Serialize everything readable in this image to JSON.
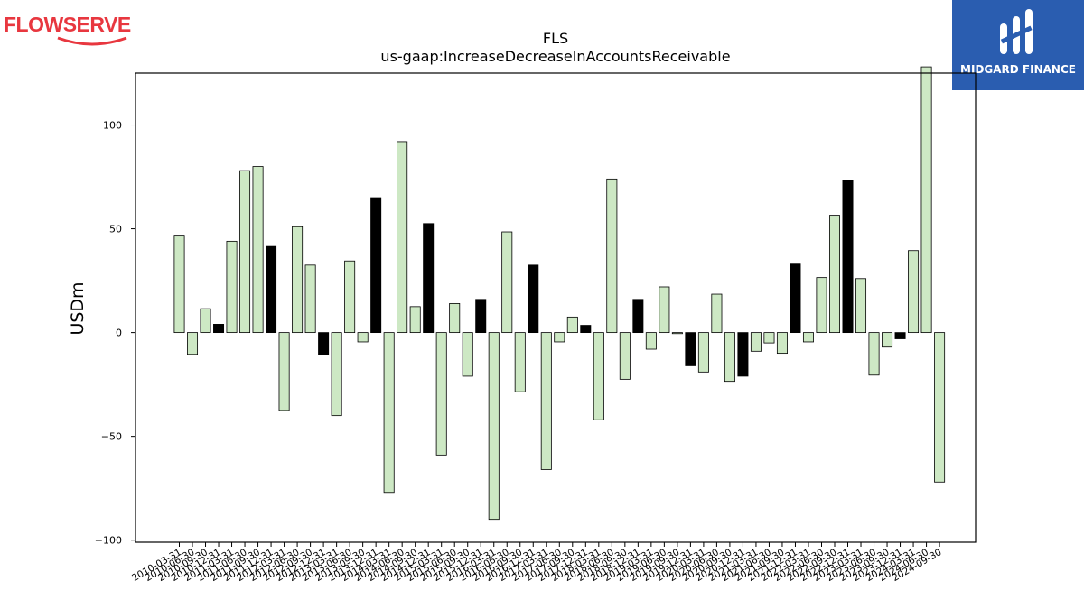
{
  "logos": {
    "left_text": "FLOWSERVE",
    "right_text": "MIDGARD FINANCE"
  },
  "colors": {
    "positive_bar": "#cde8c4",
    "highlight_bar": "#000000",
    "bar_edge": "#000000",
    "logo_left": "#e8373f",
    "logo_right_bg": "#2a5db0"
  },
  "chart_data": {
    "type": "bar",
    "title": "FLS",
    "subtitle": "us-gaap:IncreaseDecreaseInAccountsReceivable",
    "xlabel": "",
    "ylabel": "USDm",
    "ylim": [
      -101,
      125
    ],
    "yticks": [
      -100,
      -50,
      0,
      50,
      100
    ],
    "ytick_labels": [
      "−100",
      "−50",
      "0",
      "50",
      "100"
    ],
    "grid": false,
    "categories": [
      "2010-03-31",
      "2010-06-30",
      "2010-09-30",
      "2010-12-31",
      "2011-03-31",
      "2011-06-30",
      "2011-09-30",
      "2011-12-31",
      "2012-03-31",
      "2012-06-30",
      "2012-09-30",
      "2012-12-31",
      "2013-03-31",
      "2013-06-30",
      "2013-09-30",
      "2013-12-31",
      "2014-03-31",
      "2014-06-30",
      "2014-09-30",
      "2014-12-31",
      "2015-03-31",
      "2015-06-30",
      "2015-09-30",
      "2015-12-31",
      "2016-03-31",
      "2016-06-30",
      "2016-09-30",
      "2016-12-31",
      "2017-03-31",
      "2017-06-30",
      "2017-09-30",
      "2017-12-31",
      "2018-03-31",
      "2018-06-30",
      "2018-09-30",
      "2018-12-31",
      "2019-03-31",
      "2019-06-30",
      "2019-09-30",
      "2019-12-31",
      "2020-03-31",
      "2020-06-30",
      "2020-09-30",
      "2020-12-31",
      "2021-03-31",
      "2021-06-30",
      "2021-09-30",
      "2021-12-31",
      "2022-03-31",
      "2022-06-30",
      "2022-09-30",
      "2022-12-31",
      "2023-03-31",
      "2023-06-30",
      "2023-09-30",
      "2023-12-31",
      "2024-03-31",
      "2024-06-30",
      "2024-09-30"
    ],
    "values": [
      46.5,
      -10.5,
      11.5,
      4,
      44,
      78,
      80,
      41.5,
      -37.5,
      51,
      32.5,
      -10.5,
      -40,
      34.5,
      -4.5,
      65,
      -77,
      92,
      12.5,
      52.5,
      -59,
      14,
      -21,
      16,
      -90,
      48.5,
      -28.5,
      32.5,
      -66,
      -4.5,
      7.5,
      3.5,
      -42,
      74,
      -22.5,
      16,
      -8,
      22,
      -0.5,
      -16,
      -19,
      18.5,
      -23.5,
      -21,
      -9,
      -5,
      -10,
      33,
      -4.5,
      26.5,
      56.5,
      73.5,
      26,
      -20.5,
      -7,
      -3,
      39.5,
      128,
      -72
    ],
    "highlight": [
      0,
      0,
      0,
      1,
      0,
      0,
      0,
      1,
      0,
      0,
      0,
      1,
      0,
      0,
      0,
      1,
      0,
      0,
      0,
      1,
      0,
      0,
      0,
      1,
      0,
      0,
      0,
      1,
      0,
      0,
      0,
      1,
      0,
      0,
      0,
      1,
      0,
      0,
      0,
      1,
      0,
      0,
      0,
      1,
      0,
      0,
      0,
      1,
      0,
      0,
      0,
      1,
      0,
      0,
      0,
      1,
      0,
      0,
      0
    ]
  }
}
